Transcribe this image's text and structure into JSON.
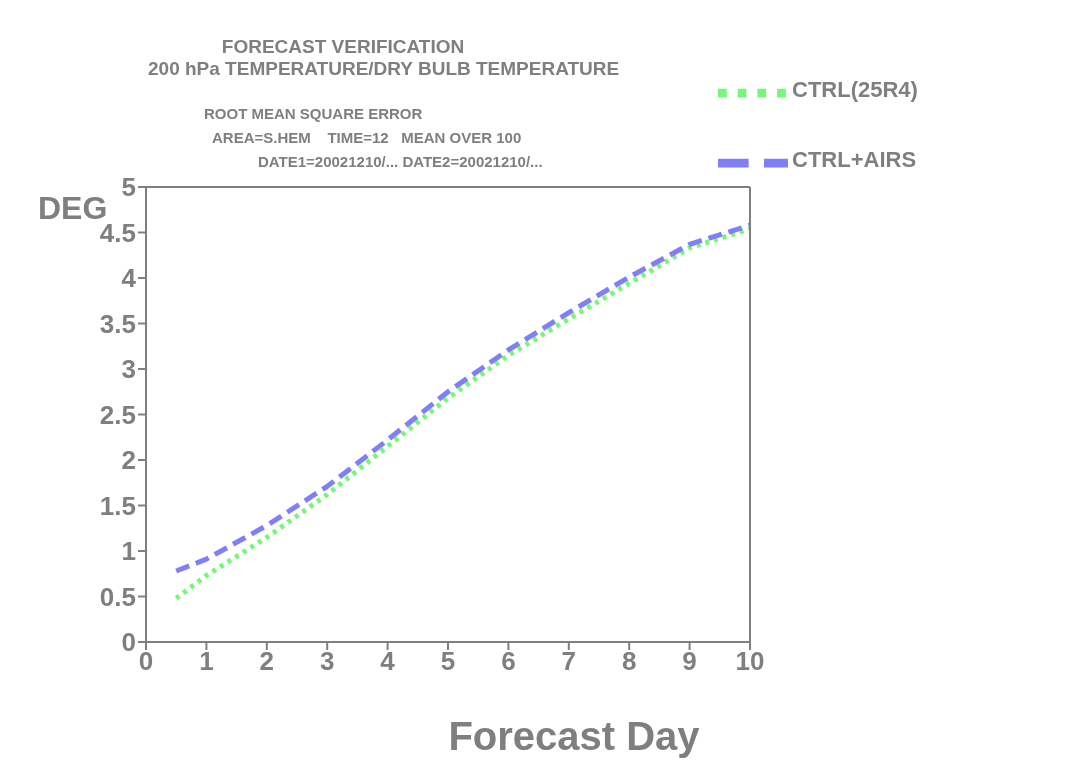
{
  "chart_data": {
    "type": "line",
    "title": "FORECAST VERIFICATION",
    "subtitle": "200 hPa TEMPERATURE/DRY BULB TEMPERATURE",
    "annotations": [
      "ROOT MEAN SQUARE ERROR",
      "AREA=S.HEM    TIME=12   MEAN OVER 100",
      "DATE1=20021210/... DATE2=20021210/..."
    ],
    "xlabel": "Forecast Day",
    "ylabel": "DEG",
    "x": [
      0.5,
      1,
      2,
      3,
      4,
      5,
      6,
      7,
      8,
      9,
      10
    ],
    "series": [
      {
        "name": "CTRL(25R4)",
        "color": "#77f777",
        "line_style": "dotted",
        "values": [
          0.48,
          0.73,
          1.15,
          1.62,
          2.15,
          2.68,
          3.15,
          3.55,
          3.94,
          4.33,
          4.54
        ]
      },
      {
        "name": "CTRL+AIRS",
        "color": "#7f7ff7",
        "line_style": "dashed",
        "values": [
          0.78,
          0.91,
          1.28,
          1.71,
          2.22,
          2.75,
          3.21,
          3.62,
          4.01,
          4.37,
          4.58
        ]
      }
    ],
    "xlim": [
      0,
      10
    ],
    "xticks": [
      0,
      1,
      2,
      3,
      4,
      5,
      6,
      7,
      8,
      9,
      10
    ],
    "ylim": [
      0,
      5
    ],
    "yticks": [
      0,
      0.5,
      1,
      1.5,
      2,
      2.5,
      3,
      3.5,
      4,
      4.5,
      5
    ],
    "grid": false,
    "legend": "top right",
    "marker": "none"
  }
}
